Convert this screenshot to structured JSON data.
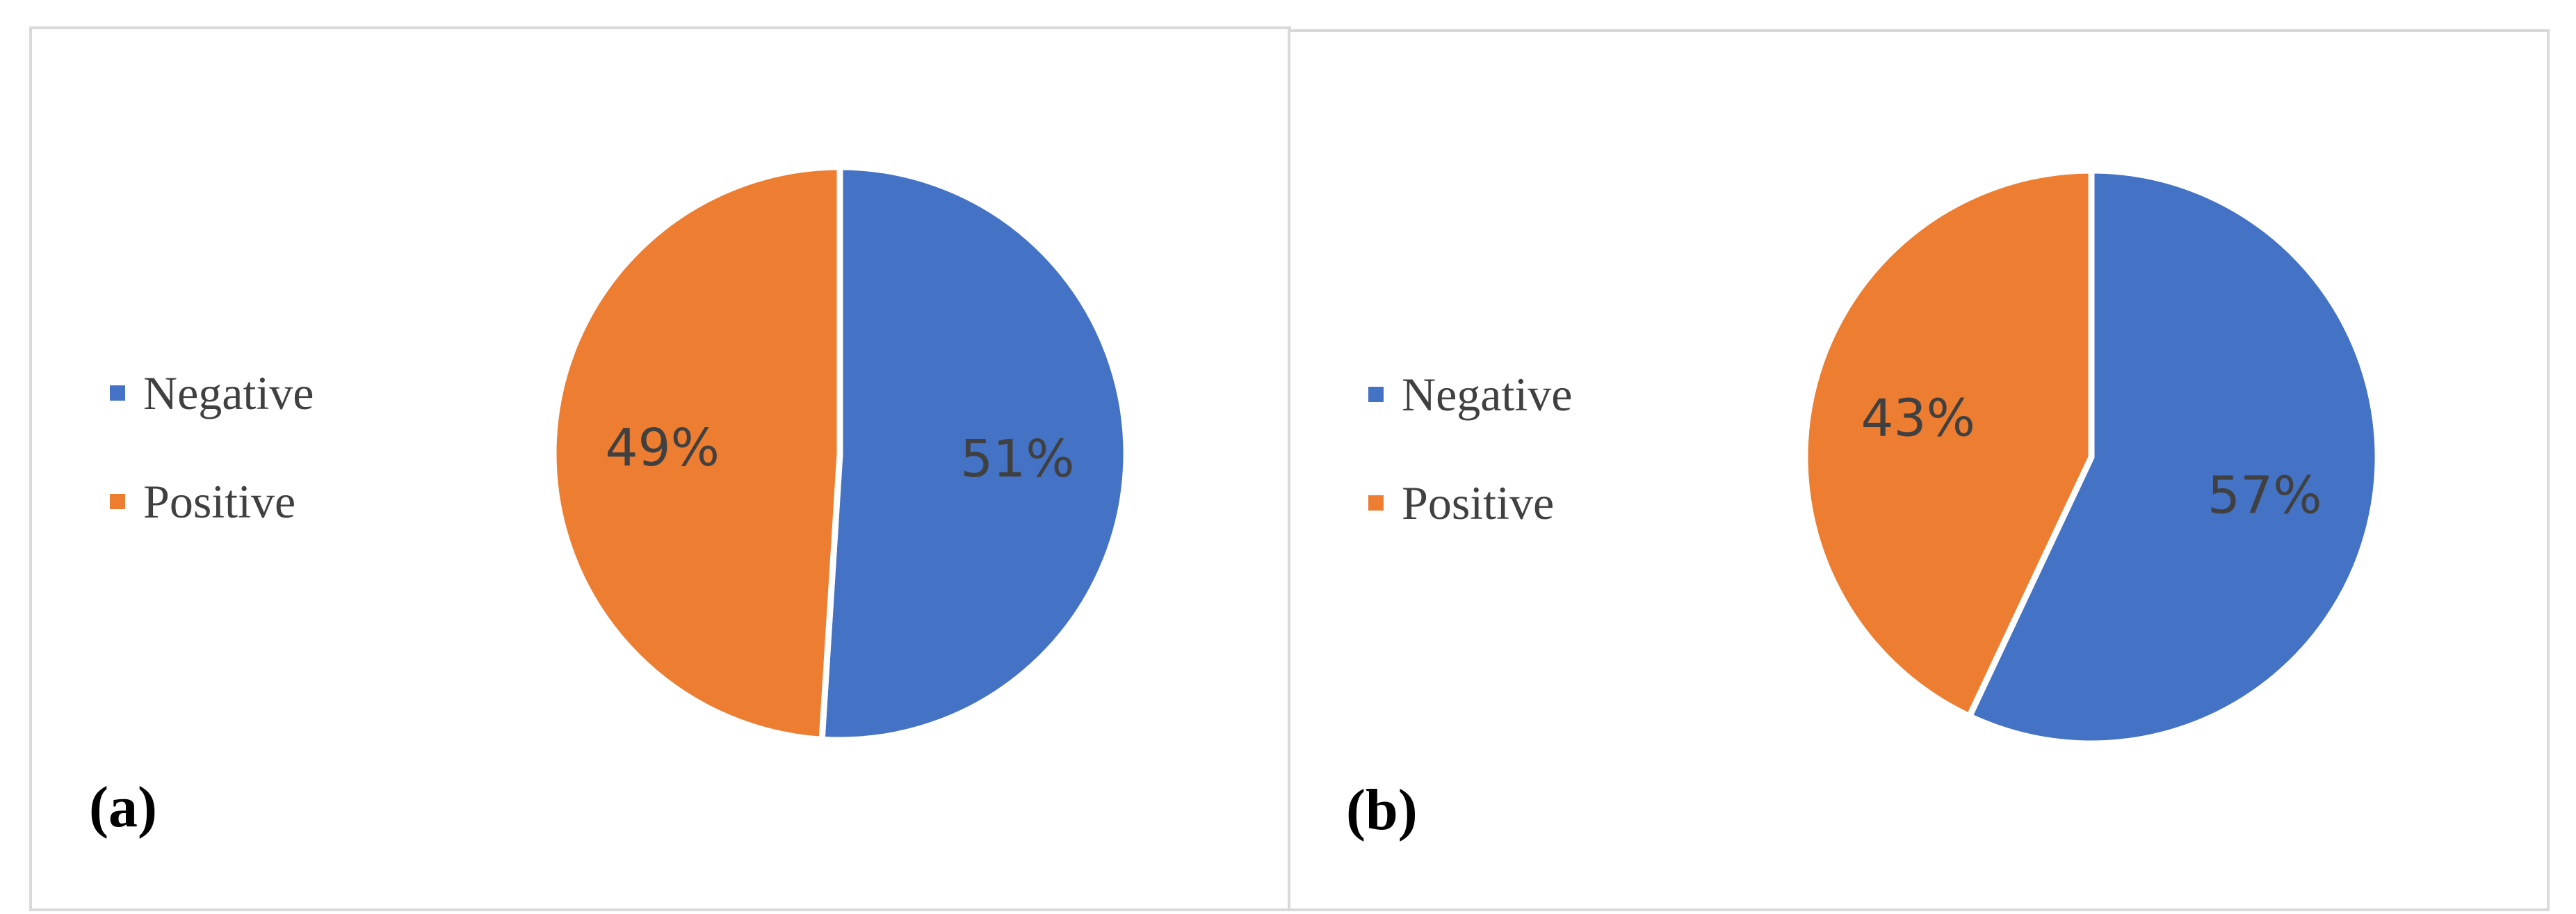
{
  "colors": {
    "negative": "#4472c4",
    "positive": "#ed7d31",
    "text": "#404040"
  },
  "chart_data": [
    {
      "type": "pie",
      "panel_label": "(a)",
      "legend_position": "left",
      "categories": [
        "Negative",
        "Positive"
      ],
      "values": [
        51,
        49
      ],
      "data_labels": [
        "51%",
        "49%"
      ]
    },
    {
      "type": "pie",
      "panel_label": "(b)",
      "legend_position": "left",
      "categories": [
        "Negative",
        "Positive"
      ],
      "values": [
        57,
        43
      ],
      "data_labels": [
        "57%",
        "43%"
      ]
    }
  ]
}
